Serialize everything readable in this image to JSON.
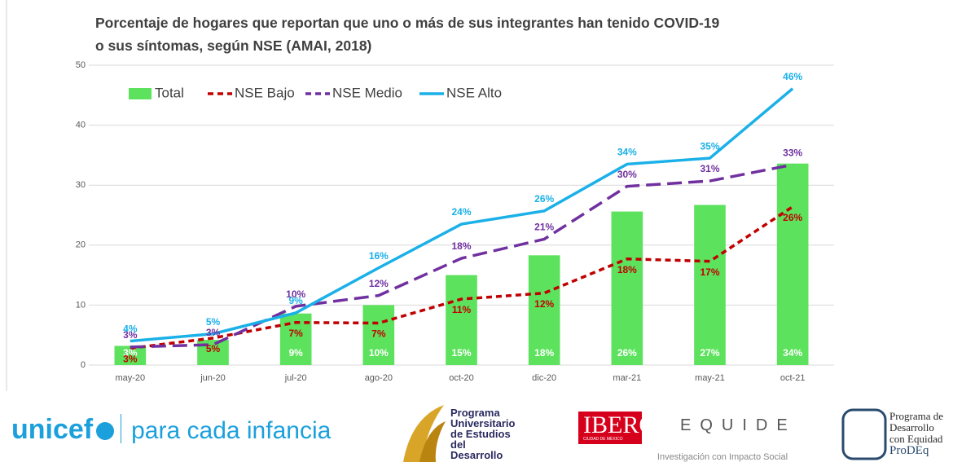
{
  "chart_data": {
    "type": "bar_line",
    "title": "Porcentaje de hogares que reportan que uno o más de sus integrantes han tenido COVID-19 o sus síntomas, según NSE (AMAI, 2018)",
    "categories": [
      "may-20",
      "jun-20",
      "jul-20",
      "ago-20",
      "oct-20",
      "dic-20",
      "mar-21",
      "may-21",
      "oct-21"
    ],
    "series": [
      {
        "name": "Total",
        "kind": "bar",
        "color": "#5ce25c",
        "values": [
          3.2,
          4.2,
          8.6,
          10.0,
          15.0,
          18.3,
          25.6,
          26.7,
          33.6
        ],
        "value_labels": [
          "3%",
          null,
          "9%",
          "10%",
          "15%",
          "18%",
          "26%",
          "27%",
          "34%"
        ]
      },
      {
        "name": "NSE Bajo",
        "kind": "line",
        "dash": true,
        "color": "#c00000",
        "values": [
          2.8,
          4.5,
          7.1,
          7.0,
          11.0,
          12.0,
          17.7,
          17.3,
          26.4
        ],
        "value_labels": [
          "3%",
          "5%",
          "7%",
          "7%",
          "11%",
          "12%",
          "18%",
          "17%",
          "26%"
        ]
      },
      {
        "name": "NSE Medio",
        "kind": "line",
        "dash": true,
        "color": "#7030a0",
        "values": [
          3.0,
          3.4,
          9.8,
          11.6,
          17.8,
          21.0,
          29.8,
          30.7,
          33.4
        ],
        "value_labels": [
          "3%",
          "3%",
          "10%",
          "12%",
          "18%",
          "21%",
          "30%",
          "31%",
          "33%"
        ]
      },
      {
        "name": "NSE Alto",
        "kind": "line",
        "dash": false,
        "color": "#1ab0e8",
        "values": [
          4.0,
          5.2,
          8.7,
          16.2,
          23.5,
          25.7,
          33.5,
          34.5,
          46.1
        ],
        "value_labels": [
          "4%",
          "5%",
          "9%",
          "16%",
          "24%",
          "26%",
          "34%",
          "35%",
          "46%"
        ]
      }
    ],
    "ylim": [
      0,
      50
    ],
    "yticks": [
      0,
      10,
      20,
      30,
      40,
      50
    ],
    "grid": true
  },
  "logos": {
    "unicef": "unicef",
    "unicef_tag": "para cada infancia",
    "pued": [
      "Programa",
      "Universitario",
      "de Estudios",
      "del Desarrollo"
    ],
    "ibero": "IBERO",
    "ibero_sub": "CIUDAD DE MÉXICO",
    "equide": "EQUIDE",
    "equide_tag": "Investigación con Impacto Social",
    "prodeq": [
      "Programa de",
      "Desarrollo",
      "con Equidad",
      "ProDEq"
    ]
  }
}
